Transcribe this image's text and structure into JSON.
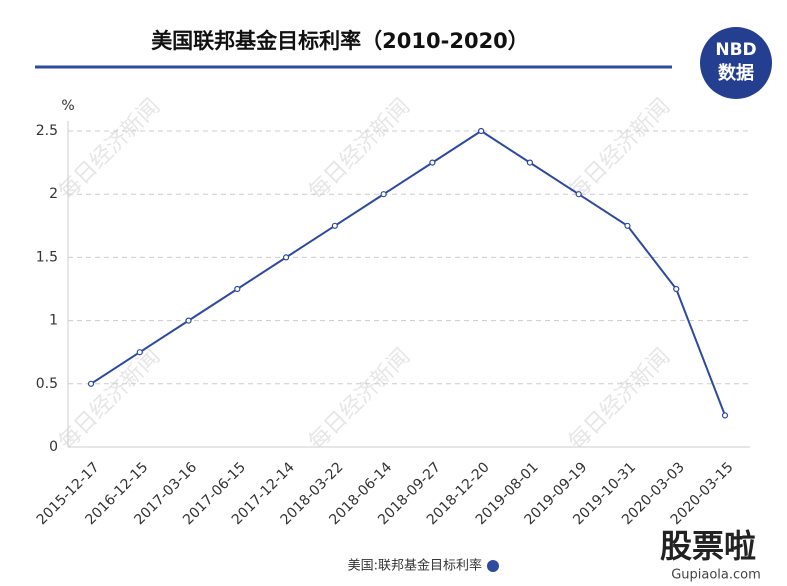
{
  "chart_data": {
    "type": "line",
    "title": "美国联邦基金目标利率（2010-2020）",
    "y_unit": "%",
    "categories": [
      "2015-12-17",
      "2016-12-15",
      "2017-03-16",
      "2017-06-15",
      "2017-12-14",
      "2018-03-22",
      "2018-06-14",
      "2018-09-27",
      "2018-12-20",
      "2019-08-01",
      "2019-09-19",
      "2019-10-31",
      "2020-03-03",
      "2020-03-15"
    ],
    "series": [
      {
        "name": "美国:联邦基金目标利率",
        "color": "#2e4a9e",
        "values": [
          0.5,
          0.75,
          1,
          1.25,
          1.5,
          1.75,
          2,
          2.25,
          2.5,
          2.25,
          2,
          1.75,
          1.25,
          0.25
        ]
      }
    ],
    "ylim": [
      0,
      2.5
    ],
    "yticks": [
      0,
      0.5,
      1,
      1.5,
      2,
      2.5
    ],
    "grid": true,
    "legend": "bottom"
  },
  "logo": {
    "top": "NBD",
    "bottom": "数据"
  },
  "watermark": "每日经济新闻",
  "site": {
    "name": "股票啦",
    "url": "Gupiaola.com"
  }
}
